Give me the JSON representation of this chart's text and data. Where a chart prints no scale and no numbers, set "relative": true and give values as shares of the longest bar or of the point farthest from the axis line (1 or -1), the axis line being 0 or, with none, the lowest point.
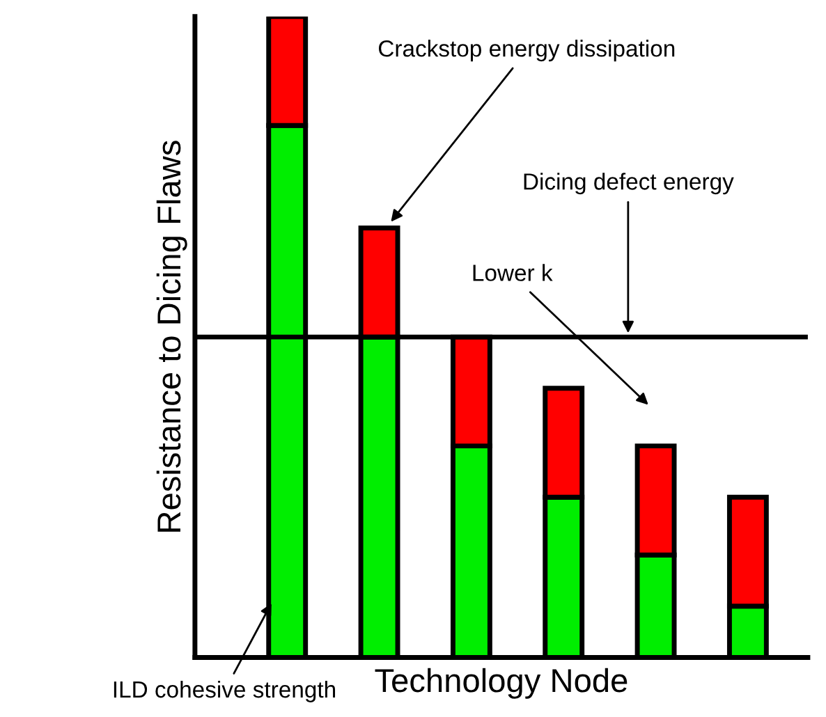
{
  "chart_data": {
    "type": "bar",
    "stacked": true,
    "relative": true,
    "xlabel": "Technology Node",
    "ylabel": "Resistance to Dicing Flaws",
    "categories": [
      null,
      null,
      null,
      null,
      null,
      null
    ],
    "series": [
      {
        "color": "#00ee00",
        "values": [
          0.83,
          0.5,
          0.33,
          0.25,
          0.16,
          0.08
        ]
      },
      {
        "color": "#ff0000",
        "values": [
          0.17,
          0.17,
          0.17,
          0.17,
          0.17,
          0.17
        ]
      }
    ],
    "ref_lines": [
      {
        "axis": "y",
        "value": 0.5,
        "label": "Dicing defect energy",
        "color": "#000000"
      }
    ],
    "annotations": [
      "Crackstop energy dissipation",
      "Lower k",
      "ILD cohesive strength"
    ],
    "grid": false,
    "legend": false
  }
}
